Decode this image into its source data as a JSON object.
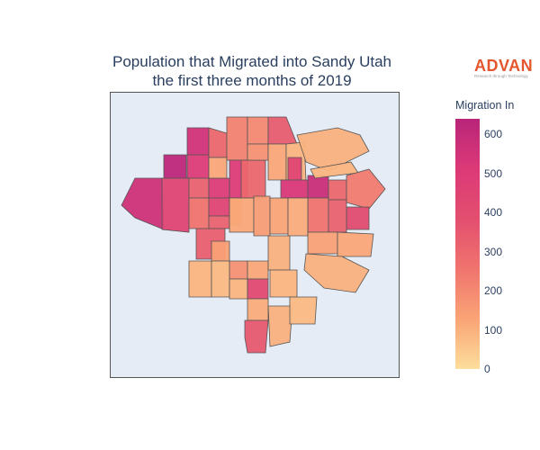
{
  "title": {
    "line1": "Population that Migrated into Sandy Utah",
    "line2": "the first three months of 2019"
  },
  "logo": {
    "wordmark": "ADVAN",
    "tagline": "Research through Technology"
  },
  "legend": {
    "title": "Migration In",
    "min": 0,
    "max": 640,
    "ticks": [
      "0",
      "100",
      "200",
      "300",
      "400",
      "500",
      "600"
    ],
    "colorscale": [
      "#fcde9c",
      "#faa476",
      "#f0746e",
      "#e34f6f",
      "#dc3977",
      "#b9257a"
    ]
  },
  "map": {
    "background": "#e5ecf6",
    "border": "#555555"
  },
  "regions": [
    {
      "value": 560,
      "c": [
        [
          135,
          228
        ],
        [
          150,
          198
        ],
        [
          180,
          198
        ],
        [
          182,
          255
        ],
        [
          150,
          242
        ]
      ]
    },
    {
      "value": 620,
      "c": [
        [
          182,
          172
        ],
        [
          207,
          172
        ],
        [
          207,
          198
        ],
        [
          182,
          198
        ]
      ]
    },
    {
      "value": 450,
      "c": [
        [
          180,
          198
        ],
        [
          210,
          198
        ],
        [
          210,
          258
        ],
        [
          180,
          255
        ]
      ]
    },
    {
      "value": 550,
      "c": [
        [
          208,
          142
        ],
        [
          232,
          142
        ],
        [
          232,
          172
        ],
        [
          208,
          172
        ]
      ]
    },
    {
      "value": 500,
      "c": [
        [
          208,
          172
        ],
        [
          232,
          172
        ],
        [
          232,
          198
        ],
        [
          208,
          198
        ]
      ]
    },
    {
      "value": 320,
      "c": [
        [
          210,
          198
        ],
        [
          232,
          198
        ],
        [
          232,
          220
        ],
        [
          210,
          220
        ]
      ]
    },
    {
      "value": 260,
      "c": [
        [
          210,
          220
        ],
        [
          232,
          220
        ],
        [
          232,
          254
        ],
        [
          210,
          254
        ]
      ]
    },
    {
      "value": 500,
      "c": [
        [
          232,
          198
        ],
        [
          255,
          198
        ],
        [
          255,
          220
        ],
        [
          232,
          220
        ]
      ]
    },
    {
      "value": 440,
      "c": [
        [
          232,
          220
        ],
        [
          255,
          220
        ],
        [
          255,
          240
        ],
        [
          232,
          240
        ]
      ]
    },
    {
      "value": 320,
      "c": [
        [
          232,
          240
        ],
        [
          255,
          240
        ],
        [
          255,
          254
        ],
        [
          232,
          254
        ]
      ]
    },
    {
      "value": 300,
      "c": [
        [
          232,
          142
        ],
        [
          252,
          148
        ],
        [
          252,
          175
        ],
        [
          232,
          175
        ]
      ]
    },
    {
      "value": 120,
      "c": [
        [
          232,
          175
        ],
        [
          252,
          175
        ],
        [
          252,
          198
        ],
        [
          232,
          198
        ]
      ]
    },
    {
      "value": 220,
      "c": [
        [
          252,
          130
        ],
        [
          275,
          130
        ],
        [
          275,
          178
        ],
        [
          252,
          178
        ]
      ]
    },
    {
      "value": 500,
      "c": [
        [
          255,
          178
        ],
        [
          275,
          178
        ],
        [
          275,
          220
        ],
        [
          255,
          220
        ]
      ]
    },
    {
      "value": 170,
      "c": [
        [
          255,
          220
        ],
        [
          268,
          220
        ],
        [
          268,
          250
        ],
        [
          255,
          250
        ]
      ]
    },
    {
      "value": 300,
      "c": [
        [
          268,
          178
        ],
        [
          295,
          178
        ],
        [
          295,
          220
        ],
        [
          268,
          220
        ]
      ]
    },
    {
      "value": 200,
      "c": [
        [
          275,
          130
        ],
        [
          298,
          130
        ],
        [
          298,
          160
        ],
        [
          275,
          160
        ]
      ]
    },
    {
      "value": 180,
      "c": [
        [
          275,
          160
        ],
        [
          298,
          160
        ],
        [
          298,
          178
        ],
        [
          275,
          178
        ]
      ]
    },
    {
      "value": 340,
      "c": [
        [
          298,
          130
        ],
        [
          318,
          130
        ],
        [
          330,
          160
        ],
        [
          298,
          160
        ]
      ]
    },
    {
      "value": 120,
      "c": [
        [
          298,
          160
        ],
        [
          318,
          160
        ],
        [
          318,
          200
        ],
        [
          298,
          200
        ]
      ]
    },
    {
      "value": 90,
      "c": [
        [
          318,
          160
        ],
        [
          338,
          158
        ],
        [
          340,
          200
        ],
        [
          318,
          200
        ]
      ]
    },
    {
      "value": 440,
      "c": [
        [
          320,
          175
        ],
        [
          335,
          175
        ],
        [
          335,
          200
        ],
        [
          320,
          200
        ]
      ]
    },
    {
      "value": 520,
      "c": [
        [
          312,
          200
        ],
        [
          342,
          200
        ],
        [
          342,
          220
        ],
        [
          312,
          220
        ]
      ]
    },
    {
      "value": 580,
      "c": [
        [
          342,
          195
        ],
        [
          365,
          195
        ],
        [
          365,
          220
        ],
        [
          342,
          220
        ]
      ]
    },
    {
      "value": 300,
      "c": [
        [
          365,
          200
        ],
        [
          385,
          200
        ],
        [
          385,
          222
        ],
        [
          365,
          222
        ]
      ]
    },
    {
      "value": 100,
      "c": [
        [
          330,
          150
        ],
        [
          375,
          142
        ],
        [
          400,
          150
        ],
        [
          410,
          168
        ],
        [
          365,
          190
        ],
        [
          340,
          180
        ]
      ]
    },
    {
      "value": 90,
      "c": [
        [
          345,
          188
        ],
        [
          390,
          180
        ],
        [
          398,
          192
        ],
        [
          350,
          198
        ]
      ]
    },
    {
      "value": 240,
      "c": [
        [
          385,
          195
        ],
        [
          410,
          188
        ],
        [
          428,
          210
        ],
        [
          410,
          232
        ],
        [
          385,
          225
        ]
      ]
    },
    {
      "value": 400,
      "c": [
        [
          385,
          230
        ],
        [
          410,
          230
        ],
        [
          410,
          255
        ],
        [
          385,
          255
        ]
      ]
    },
    {
      "value": 260,
      "c": [
        [
          342,
          220
        ],
        [
          365,
          220
        ],
        [
          365,
          258
        ],
        [
          342,
          258
        ]
      ]
    },
    {
      "value": 320,
      "c": [
        [
          365,
          222
        ],
        [
          385,
          222
        ],
        [
          385,
          258
        ],
        [
          365,
          258
        ]
      ]
    },
    {
      "value": 120,
      "c": [
        [
          255,
          220
        ],
        [
          282,
          220
        ],
        [
          282,
          258
        ],
        [
          255,
          258
        ]
      ]
    },
    {
      "value": 150,
      "c": [
        [
          282,
          218
        ],
        [
          300,
          218
        ],
        [
          300,
          262
        ],
        [
          282,
          262
        ]
      ]
    },
    {
      "value": 130,
      "c": [
        [
          300,
          220
        ],
        [
          320,
          220
        ],
        [
          320,
          260
        ],
        [
          300,
          260
        ]
      ]
    },
    {
      "value": 110,
      "c": [
        [
          320,
          220
        ],
        [
          342,
          220
        ],
        [
          342,
          262
        ],
        [
          320,
          262
        ]
      ]
    },
    {
      "value": 140,
      "c": [
        [
          342,
          258
        ],
        [
          375,
          258
        ],
        [
          375,
          282
        ],
        [
          342,
          282
        ]
      ]
    },
    {
      "value": 120,
      "c": [
        [
          375,
          258
        ],
        [
          415,
          260
        ],
        [
          412,
          285
        ],
        [
          375,
          285
        ]
      ]
    },
    {
      "value": 100,
      "c": [
        [
          340,
          282
        ],
        [
          380,
          285
        ],
        [
          410,
          300
        ],
        [
          395,
          325
        ],
        [
          360,
          320
        ],
        [
          338,
          300
        ]
      ]
    },
    {
      "value": 330,
      "c": [
        [
          218,
          254
        ],
        [
          250,
          254
        ],
        [
          250,
          288
        ],
        [
          218,
          288
        ]
      ]
    },
    {
      "value": 140,
      "c": [
        [
          235,
          268
        ],
        [
          255,
          268
        ],
        [
          255,
          290
        ],
        [
          235,
          290
        ]
      ]
    },
    {
      "value": 90,
      "c": [
        [
          210,
          290
        ],
        [
          235,
          290
        ],
        [
          235,
          330
        ],
        [
          210,
          330
        ]
      ]
    },
    {
      "value": 80,
      "c": [
        [
          235,
          290
        ],
        [
          255,
          290
        ],
        [
          255,
          330
        ],
        [
          235,
          330
        ]
      ]
    },
    {
      "value": 180,
      "c": [
        [
          255,
          290
        ],
        [
          275,
          290
        ],
        [
          275,
          310
        ],
        [
          255,
          310
        ]
      ]
    },
    {
      "value": 120,
      "c": [
        [
          275,
          290
        ],
        [
          298,
          290
        ],
        [
          298,
          310
        ],
        [
          275,
          310
        ]
      ]
    },
    {
      "value": 90,
      "c": [
        [
          255,
          310
        ],
        [
          275,
          310
        ],
        [
          275,
          332
        ],
        [
          255,
          332
        ]
      ]
    },
    {
      "value": 420,
      "c": [
        [
          275,
          310
        ],
        [
          298,
          310
        ],
        [
          298,
          332
        ],
        [
          275,
          332
        ]
      ]
    },
    {
      "value": 100,
      "c": [
        [
          298,
          262
        ],
        [
          322,
          262
        ],
        [
          322,
          300
        ],
        [
          298,
          300
        ]
      ]
    },
    {
      "value": 90,
      "c": [
        [
          300,
          300
        ],
        [
          330,
          300
        ],
        [
          330,
          330
        ],
        [
          300,
          330
        ]
      ]
    },
    {
      "value": 110,
      "c": [
        [
          275,
          332
        ],
        [
          298,
          332
        ],
        [
          298,
          356
        ],
        [
          275,
          356
        ]
      ]
    },
    {
      "value": 350,
      "c": [
        [
          272,
          356
        ],
        [
          298,
          356
        ],
        [
          295,
          392
        ],
        [
          275,
          392
        ],
        [
          272,
          375
        ]
      ]
    },
    {
      "value": 100,
      "c": [
        [
          298,
          340
        ],
        [
          325,
          340
        ],
        [
          322,
          380
        ],
        [
          300,
          385
        ]
      ]
    },
    {
      "value": 80,
      "c": [
        [
          322,
          330
        ],
        [
          352,
          330
        ],
        [
          350,
          360
        ],
        [
          322,
          360
        ]
      ]
    }
  ]
}
